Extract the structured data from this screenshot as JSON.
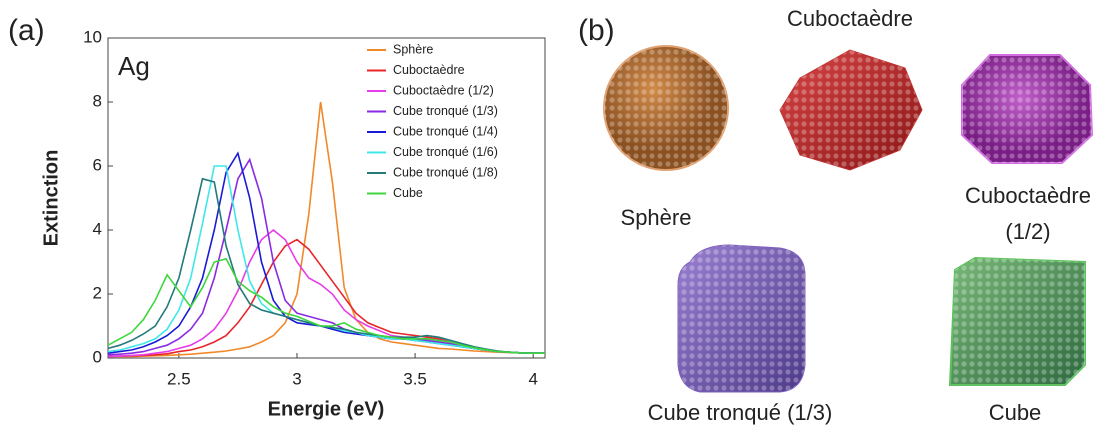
{
  "panel_labels": [
    "(a)",
    "(b)"
  ],
  "chart_data": {
    "type": "line",
    "annotation": "Ag",
    "x_label": "Energie (eV)",
    "y_label": "Extinction",
    "xlim": [
      2.2,
      4.05
    ],
    "xticks": [
      2.5,
      3,
      3.5,
      4
    ],
    "ylim": [
      0,
      10
    ],
    "yticks": [
      0,
      2,
      4,
      6,
      8,
      10
    ],
    "x": [
      2.2,
      2.25,
      2.3,
      2.35,
      2.4,
      2.45,
      2.5,
      2.55,
      2.6,
      2.65,
      2.7,
      2.75,
      2.8,
      2.85,
      2.9,
      2.95,
      3.0,
      3.05,
      3.1,
      3.15,
      3.2,
      3.25,
      3.3,
      3.35,
      3.4,
      3.45,
      3.5,
      3.55,
      3.6,
      3.65,
      3.7,
      3.75,
      3.8,
      3.85,
      3.9,
      3.95,
      4.0,
      4.05
    ],
    "series": [
      {
        "name": "Sphère",
        "color": "#f0892a",
        "values": [
          0.05,
          0.05,
          0.05,
          0.06,
          0.07,
          0.08,
          0.1,
          0.12,
          0.15,
          0.18,
          0.22,
          0.28,
          0.35,
          0.5,
          0.7,
          1.1,
          2.0,
          4.5,
          8.0,
          5.5,
          2.2,
          1.2,
          0.8,
          0.6,
          0.5,
          0.45,
          0.4,
          0.35,
          0.3,
          0.28,
          0.25,
          0.22,
          0.2,
          0.18,
          0.17,
          0.16,
          0.15,
          0.15
        ]
      },
      {
        "name": "Cuboctaèdre",
        "color": "#e8262a",
        "values": [
          0.05,
          0.06,
          0.07,
          0.08,
          0.1,
          0.13,
          0.2,
          0.25,
          0.35,
          0.5,
          0.7,
          1.1,
          1.6,
          2.3,
          3.0,
          3.5,
          3.7,
          3.4,
          2.9,
          2.4,
          1.9,
          1.4,
          1.1,
          0.95,
          0.8,
          0.75,
          0.7,
          0.65,
          0.6,
          0.5,
          0.4,
          0.3,
          0.25,
          0.2,
          0.18,
          0.16,
          0.15,
          0.15
        ]
      },
      {
        "name": "Cuboctaèdre (1/2)",
        "color": "#e83ce8",
        "values": [
          0.05,
          0.06,
          0.08,
          0.1,
          0.15,
          0.2,
          0.3,
          0.4,
          0.6,
          0.9,
          1.4,
          2.1,
          3.0,
          3.7,
          4.0,
          3.7,
          3.0,
          2.5,
          2.3,
          2.0,
          1.5,
          1.2,
          1.0,
          0.85,
          0.7,
          0.65,
          0.6,
          0.6,
          0.55,
          0.5,
          0.4,
          0.3,
          0.25,
          0.2,
          0.18,
          0.16,
          0.15,
          0.15
        ]
      },
      {
        "name": "Cube tronqué (1/3)",
        "color": "#8a2be2",
        "values": [
          0.1,
          0.12,
          0.15,
          0.2,
          0.3,
          0.4,
          0.6,
          0.9,
          1.4,
          2.5,
          4.0,
          5.6,
          6.2,
          5.0,
          3.0,
          1.8,
          1.4,
          1.3,
          1.2,
          1.1,
          0.9,
          0.8,
          0.7,
          0.65,
          0.6,
          0.6,
          0.6,
          0.55,
          0.5,
          0.45,
          0.35,
          0.3,
          0.25,
          0.2,
          0.18,
          0.16,
          0.15,
          0.15
        ]
      },
      {
        "name": "Cube tronqué (1/4)",
        "color": "#1a1ad6",
        "values": [
          0.15,
          0.2,
          0.25,
          0.35,
          0.5,
          0.7,
          1.0,
          1.6,
          2.5,
          4.0,
          5.8,
          6.4,
          5.0,
          3.0,
          1.8,
          1.3,
          1.1,
          1.05,
          1.0,
          0.9,
          0.8,
          0.75,
          0.7,
          0.65,
          0.6,
          0.6,
          0.55,
          0.5,
          0.45,
          0.4,
          0.35,
          0.3,
          0.25,
          0.2,
          0.18,
          0.16,
          0.15,
          0.15
        ]
      },
      {
        "name": "Cube tronqué (1/6)",
        "color": "#3ee8e8",
        "values": [
          0.2,
          0.25,
          0.35,
          0.45,
          0.6,
          0.9,
          1.5,
          2.5,
          4.2,
          6.0,
          6.0,
          4.0,
          2.4,
          1.7,
          1.4,
          1.3,
          1.2,
          1.1,
          1.0,
          0.95,
          0.85,
          0.8,
          0.7,
          0.65,
          0.6,
          0.6,
          0.55,
          0.5,
          0.45,
          0.4,
          0.35,
          0.3,
          0.25,
          0.2,
          0.18,
          0.16,
          0.15,
          0.15
        ]
      },
      {
        "name": "Cube tronqué (1/8)",
        "color": "#237a7a",
        "values": [
          0.3,
          0.4,
          0.55,
          0.75,
          1.0,
          1.6,
          2.5,
          4.0,
          5.6,
          5.5,
          3.5,
          2.3,
          1.7,
          1.5,
          1.4,
          1.3,
          1.2,
          1.1,
          1.0,
          0.95,
          0.9,
          0.8,
          0.75,
          0.7,
          0.65,
          0.65,
          0.65,
          0.7,
          0.65,
          0.55,
          0.45,
          0.35,
          0.28,
          0.22,
          0.18,
          0.16,
          0.15,
          0.15
        ]
      },
      {
        "name": "Cube",
        "color": "#3ed63e",
        "values": [
          0.4,
          0.6,
          0.8,
          1.2,
          1.8,
          2.6,
          2.1,
          1.6,
          2.2,
          3.0,
          3.1,
          2.4,
          2.1,
          1.9,
          1.6,
          1.4,
          1.3,
          1.15,
          1.0,
          1.0,
          1.1,
          0.9,
          0.8,
          0.7,
          0.65,
          0.6,
          0.6,
          0.6,
          0.55,
          0.5,
          0.4,
          0.32,
          0.26,
          0.2,
          0.18,
          0.16,
          0.15,
          0.15
        ]
      }
    ]
  },
  "particles": [
    "Cuboctaèdre",
    "Sphère",
    "Cuboctaèdre",
    "(1/2)",
    "Cube tronqué (1/3)",
    "Cube"
  ]
}
